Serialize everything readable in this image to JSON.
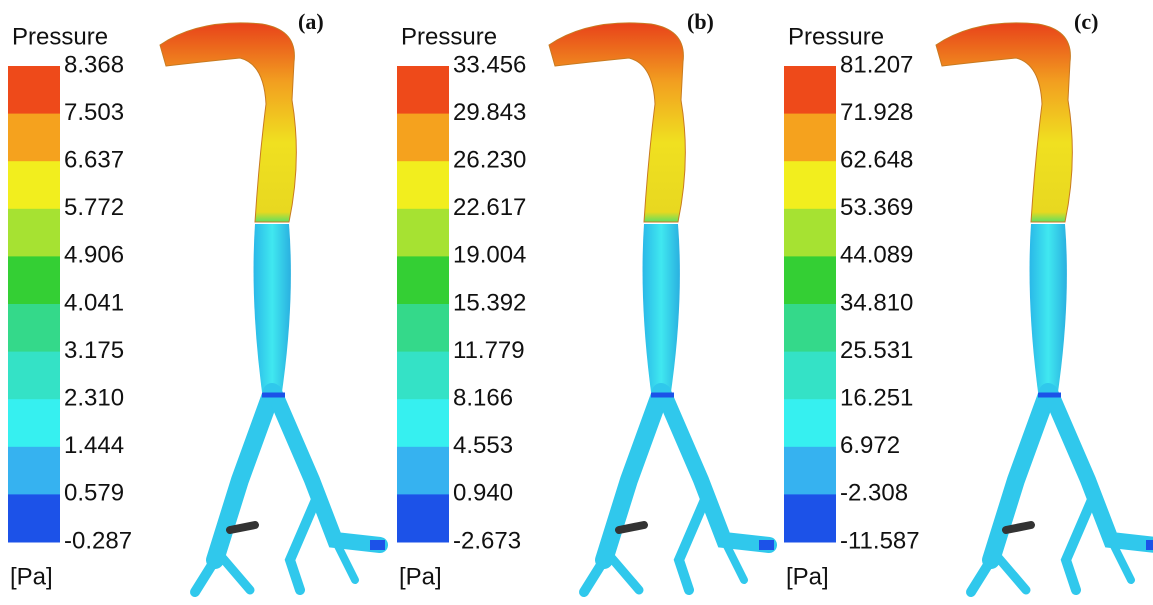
{
  "panels": [
    {
      "label": "(a)",
      "title": "Pressure",
      "unit": "[Pa]",
      "ticks": [
        "8.368",
        "7.503",
        "6.637",
        "5.772",
        "4.906",
        "4.041",
        "3.175",
        "2.310",
        "1.444",
        "0.579",
        "-0.287"
      ]
    },
    {
      "label": "(b)",
      "title": "Pressure",
      "unit": "[Pa]",
      "ticks": [
        "33.456",
        "29.843",
        "26.230",
        "22.617",
        "19.004",
        "15.392",
        "11.779",
        "8.166",
        "4.553",
        "0.940",
        "-2.673"
      ]
    },
    {
      "label": "(c)",
      "title": "Pressure",
      "unit": "[Pa]",
      "ticks": [
        "81.207",
        "71.928",
        "62.648",
        "53.369",
        "44.089",
        "34.810",
        "25.531",
        "16.251",
        "6.972",
        "-2.308",
        "-11.587"
      ]
    }
  ],
  "colorbar_colors": [
    "#ee4a1a",
    "#f5a21e",
    "#f2ee1e",
    "#a6e232",
    "#34cf34",
    "#34d98a",
    "#34e2c6",
    "#36f0f0",
    "#36b2f0",
    "#1c52e8"
  ]
}
